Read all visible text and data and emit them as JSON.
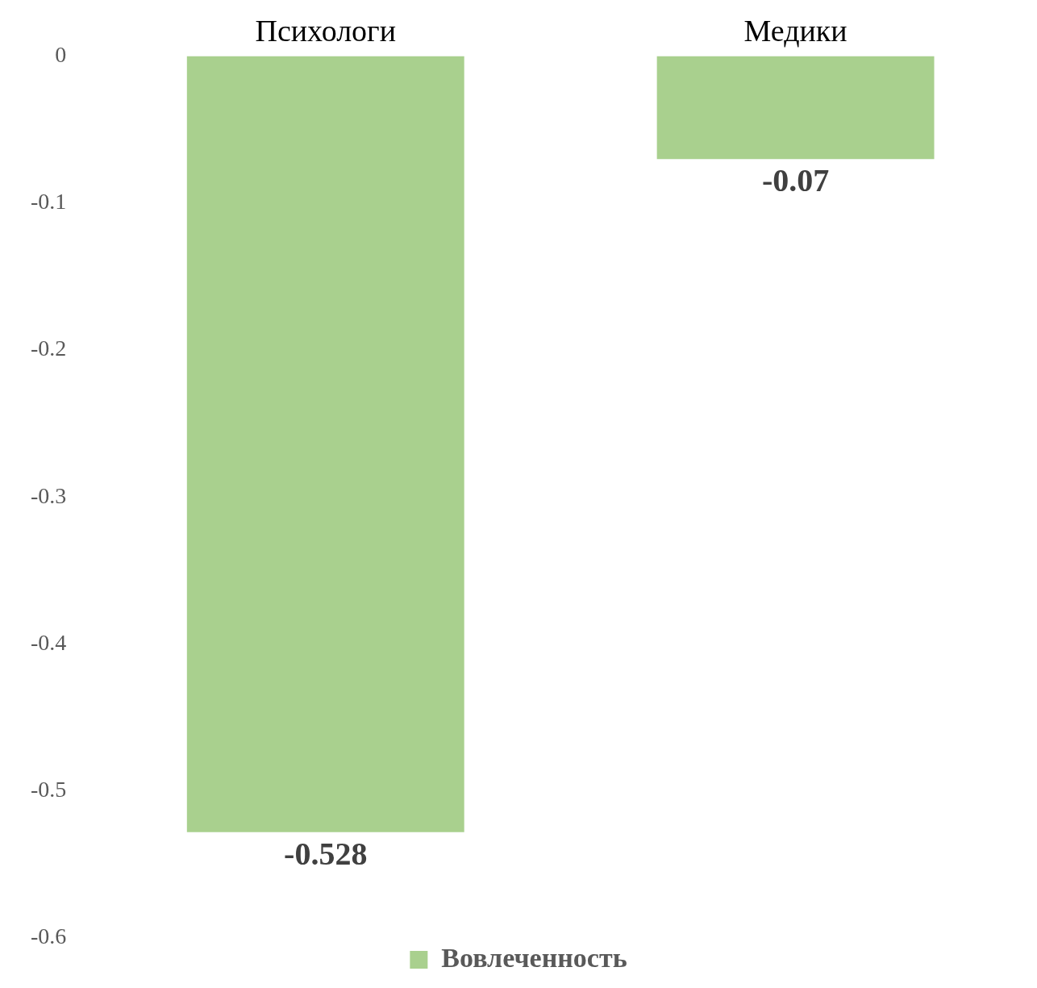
{
  "chart_data": {
    "type": "bar",
    "categories": [
      "Психологи",
      "Медики"
    ],
    "series": [
      {
        "name": "Вовлеченность",
        "color": "#a9d08e",
        "values": [
          -0.528,
          -0.07
        ]
      }
    ],
    "ylim": [
      -0.6,
      0
    ],
    "yticks": [
      0,
      -0.1,
      -0.2,
      -0.3,
      -0.4,
      -0.5,
      -0.6
    ],
    "grid": false,
    "legend": "bottom",
    "data_labels": true
  }
}
